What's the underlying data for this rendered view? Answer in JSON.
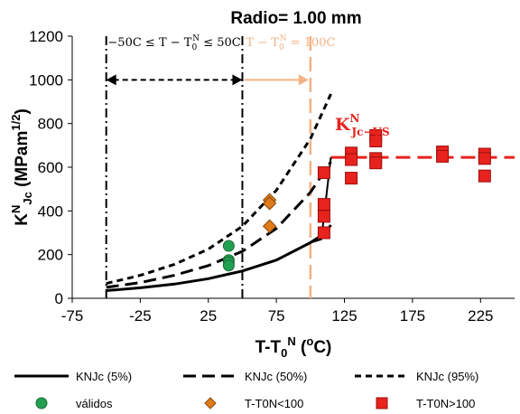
{
  "chart_data": {
    "type": "scatter",
    "title": "Radio= 1.00 mm",
    "xlabel": "T-T0N (oC)",
    "ylabel": "KNJc (MPam1/2)",
    "xlim": [
      -75,
      250
    ],
    "ylim": [
      0,
      1200
    ],
    "xticks": [
      "-75",
      "-25",
      "25",
      "75",
      "125",
      "175",
      "225"
    ],
    "yticks": [
      "0",
      "200",
      "400",
      "600",
      "800",
      "1000",
      "1200"
    ],
    "grid": false,
    "legend_position": "bottom",
    "series": [
      {
        "name": "KNJc (5%)",
        "kind": "line",
        "style": "solid",
        "color": "#000000",
        "x": [
          -50,
          -25,
          0,
          25,
          50,
          75,
          100,
          110,
          115
        ],
        "y": [
          35,
          48,
          65,
          90,
          125,
          175,
          255,
          295,
          335
        ]
      },
      {
        "name": "KNJc (50%)",
        "kind": "line",
        "style": "long-dash",
        "color": "#000000",
        "x": [
          -50,
          -25,
          0,
          25,
          50,
          75,
          100,
          115
        ],
        "y": [
          50,
          72,
          105,
          150,
          215,
          320,
          485,
          625
        ]
      },
      {
        "name": "KNJc (95%)",
        "kind": "line",
        "style": "short-dash",
        "color": "#000000",
        "x": [
          -50,
          -25,
          0,
          25,
          50,
          75,
          100,
          115
        ],
        "y": [
          68,
          105,
          155,
          225,
          330,
          495,
          730,
          935
        ]
      },
      {
        "name": "válidos",
        "kind": "scatter",
        "marker": "circle",
        "color": "#22a052",
        "x": [
          40,
          40,
          40,
          40
        ],
        "y": [
          240,
          175,
          165,
          150
        ]
      },
      {
        "name": "T-T0N<100",
        "kind": "scatter",
        "marker": "diamond",
        "color": "#e07b1a",
        "x": [
          70,
          70,
          70
        ],
        "y": [
          450,
          435,
          330
        ]
      },
      {
        "name": "T-T0N>100",
        "kind": "scatter",
        "marker": "square",
        "color": "#e8221d",
        "x": [
          110,
          110,
          110,
          110,
          130,
          130,
          130,
          148,
          148,
          148,
          148,
          197,
          197,
          228,
          228,
          228
        ],
        "y": [
          575,
          430,
          375,
          300,
          665,
          635,
          550,
          745,
          720,
          640,
          620,
          670,
          650,
          660,
          640,
          560
        ]
      }
    ],
    "annotations": {
      "kjc_us_line": {
        "x": [
          115,
          250
        ],
        "y": 645,
        "color": "#e8221d"
      },
      "kjc_us_label": {
        "main": "K",
        "sup": "N",
        "sub": "Jc−US",
        "color": "#e8221d"
      },
      "left_range_text": "−50C ≤ T − T0N ≤ 50C",
      "right_range_text": "T − T0N = 100C",
      "left_range_x": [
        -50,
        50
      ],
      "right_range_x": [
        50,
        100
      ],
      "arrow_y": 1000,
      "orange_color": "#f4b183"
    }
  },
  "legend": [
    {
      "label": "KNJc (5%)",
      "type": "line-solid"
    },
    {
      "label": "KNJc (50%)",
      "type": "line-long"
    },
    {
      "label": "KNJc (95%)",
      "type": "line-short"
    },
    {
      "label": "válidos",
      "type": "circle"
    },
    {
      "label": "T-T0N<100",
      "type": "diamond"
    },
    {
      "label": "T-T0N>100",
      "type": "square"
    }
  ]
}
